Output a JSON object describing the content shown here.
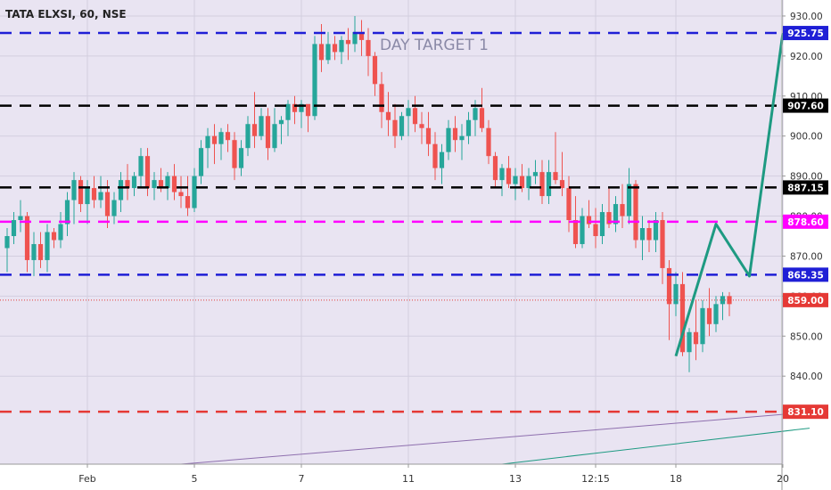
{
  "header": {
    "symbol_label": "TATA ELXSI, 60, NSE"
  },
  "colors": {
    "plot_bg": "#e9e4f2",
    "grid": "#d3cedf",
    "up": "#26a69a",
    "down": "#ef5350",
    "blue_line": "#1f1fd6",
    "black_line": "#000000",
    "magenta_line": "#ff00ff",
    "red_line": "#e53935",
    "projection": "#1e9a82",
    "axis_text": "#333333"
  },
  "chart_data": {
    "type": "candlestick",
    "title": "TATA ELXSI, 60, NSE",
    "annotation": "DAY TARGET 1",
    "y_axis": {
      "range": [
        818,
        934
      ],
      "ticks": [
        "840.00",
        "850.00",
        "860.00",
        "870.00",
        "880.00",
        "890.00",
        "900.00",
        "910.00",
        "920.00",
        "930.00"
      ],
      "tick_values": [
        840,
        850,
        860,
        870,
        880,
        890,
        900,
        910,
        920,
        930
      ]
    },
    "x_axis": {
      "tick_labels": [
        "Feb",
        "5",
        "7",
        "11",
        "13",
        "12:15",
        "18",
        "20"
      ],
      "tick_index": [
        12,
        28,
        44,
        60,
        76,
        88,
        100,
        116
      ]
    },
    "levels": [
      {
        "value": 925.75,
        "label": "925.75",
        "style": "dashed",
        "color_key": "blue_line"
      },
      {
        "value": 907.6,
        "label": "907.60",
        "style": "dashed",
        "color_key": "black_line"
      },
      {
        "value": 887.15,
        "label": "887.15",
        "style": "dashed",
        "color_key": "black_line"
      },
      {
        "value": 878.6,
        "label": "878.60",
        "style": "dashed",
        "color_key": "magenta_line"
      },
      {
        "value": 865.35,
        "label": "865.35",
        "style": "dashed",
        "color_key": "blue_line"
      },
      {
        "value": 859.0,
        "label": "859.00",
        "style": "dotted",
        "color_key": "red_line"
      },
      {
        "value": 831.1,
        "label": "831.10",
        "style": "dashed",
        "color_key": "red_line"
      }
    ],
    "projection_path": [
      [
        100,
        845
      ],
      [
        106,
        878
      ],
      [
        111,
        865
      ],
      [
        116,
        925.75
      ]
    ],
    "trend_lines": [
      {
        "color_key": "grid_purple",
        "from": [
          26,
          818
        ],
        "to": [
          120,
          831
        ]
      },
      {
        "color_key": "projection",
        "from": [
          74,
          818
        ],
        "to": [
          120,
          827
        ]
      }
    ],
    "candles": [
      [
        872,
        877,
        866,
        875
      ],
      [
        875,
        881,
        873,
        879
      ],
      [
        879,
        884,
        876,
        880
      ],
      [
        880,
        881,
        866,
        869
      ],
      [
        869,
        876,
        865,
        873
      ],
      [
        873,
        876,
        867,
        869
      ],
      [
        869,
        878,
        866,
        876
      ],
      [
        876,
        877,
        872,
        874
      ],
      [
        874,
        881,
        872,
        878
      ],
      [
        878,
        886,
        875,
        884
      ],
      [
        884,
        891,
        878,
        889
      ],
      [
        889,
        890,
        881,
        883
      ],
      [
        883,
        889,
        878,
        887
      ],
      [
        887,
        890,
        882,
        884
      ],
      [
        884,
        890,
        882,
        886
      ],
      [
        886,
        889,
        877,
        880
      ],
      [
        880,
        886,
        878,
        884
      ],
      [
        884,
        891,
        881,
        889
      ],
      [
        889,
        893,
        884,
        887
      ],
      [
        887,
        891,
        885,
        890
      ],
      [
        890,
        897,
        887,
        895
      ],
      [
        895,
        897,
        885,
        887
      ],
      [
        887,
        891,
        884,
        889
      ],
      [
        889,
        892,
        886,
        887
      ],
      [
        887,
        891,
        884,
        890
      ],
      [
        890,
        893,
        884,
        886
      ],
      [
        886,
        890,
        882,
        885
      ],
      [
        885,
        890,
        880,
        882
      ],
      [
        882,
        892,
        881,
        890
      ],
      [
        890,
        899,
        888,
        897
      ],
      [
        897,
        902,
        892,
        900
      ],
      [
        900,
        903,
        893,
        898
      ],
      [
        898,
        902,
        894,
        901
      ],
      [
        901,
        903,
        896,
        899
      ],
      [
        899,
        901,
        889,
        892
      ],
      [
        892,
        899,
        890,
        897
      ],
      [
        897,
        905,
        895,
        903
      ],
      [
        903,
        911,
        897,
        900
      ],
      [
        900,
        907,
        899,
        905
      ],
      [
        905,
        907,
        894,
        897
      ],
      [
        897,
        907,
        896,
        903
      ],
      [
        903,
        905,
        898,
        904
      ],
      [
        904,
        909,
        900,
        908
      ],
      [
        908,
        910,
        903,
        906
      ],
      [
        906,
        909,
        902,
        908
      ],
      [
        908,
        907,
        901,
        905
      ],
      [
        905,
        925,
        904,
        923
      ],
      [
        923,
        928,
        916,
        919
      ],
      [
        919,
        926,
        918,
        923
      ],
      [
        923,
        925,
        919,
        921
      ],
      [
        921,
        925,
        918,
        924
      ],
      [
        924,
        927,
        919,
        923
      ],
      [
        923,
        930,
        921,
        926
      ],
      [
        926,
        929,
        920,
        924
      ],
      [
        924,
        927,
        915,
        920
      ],
      [
        920,
        921,
        910,
        913
      ],
      [
        913,
        916,
        902,
        906
      ],
      [
        906,
        911,
        900,
        904
      ],
      [
        904,
        908,
        897,
        900
      ],
      [
        900,
        906,
        899,
        905
      ],
      [
        905,
        909,
        900,
        907
      ],
      [
        907,
        910,
        901,
        903
      ],
      [
        903,
        906,
        898,
        902
      ],
      [
        902,
        906,
        895,
        898
      ],
      [
        898,
        901,
        889,
        892
      ],
      [
        892,
        898,
        888,
        896
      ],
      [
        896,
        904,
        894,
        902
      ],
      [
        902,
        905,
        896,
        899
      ],
      [
        899,
        903,
        894,
        900
      ],
      [
        900,
        906,
        898,
        904
      ],
      [
        904,
        909,
        900,
        907
      ],
      [
        907,
        912,
        901,
        902
      ],
      [
        902,
        904,
        893,
        895
      ],
      [
        895,
        896,
        887,
        889
      ],
      [
        889,
        893,
        885,
        892
      ],
      [
        892,
        895,
        887,
        888
      ],
      [
        888,
        892,
        884,
        890
      ],
      [
        890,
        893,
        886,
        887
      ],
      [
        887,
        892,
        884,
        890
      ],
      [
        890,
        894,
        888,
        891
      ],
      [
        891,
        894,
        883,
        885
      ],
      [
        885,
        894,
        883,
        891
      ],
      [
        891,
        901,
        888,
        889
      ],
      [
        889,
        896,
        885,
        887
      ],
      [
        887,
        890,
        876,
        879
      ],
      [
        879,
        885,
        872,
        873
      ],
      [
        873,
        882,
        872,
        880
      ],
      [
        880,
        884,
        877,
        878
      ],
      [
        878,
        882,
        872,
        875
      ],
      [
        875,
        883,
        873,
        881
      ],
      [
        881,
        887,
        877,
        878
      ],
      [
        878,
        885,
        876,
        883
      ],
      [
        883,
        888,
        877,
        880
      ],
      [
        880,
        892,
        878,
        888
      ],
      [
        888,
        889,
        872,
        874
      ],
      [
        874,
        880,
        869,
        877
      ],
      [
        877,
        879,
        871,
        874
      ],
      [
        874,
        881,
        871,
        879
      ],
      [
        879,
        881,
        863,
        867
      ],
      [
        867,
        869,
        849,
        858
      ],
      [
        858,
        866,
        855,
        863
      ],
      [
        863,
        866,
        845,
        846
      ],
      [
        846,
        852,
        841,
        851
      ],
      [
        851,
        859,
        844,
        848
      ],
      [
        848,
        859,
        846,
        857
      ],
      [
        857,
        862,
        850,
        853
      ],
      [
        853,
        860,
        851,
        858
      ],
      [
        858,
        861,
        854,
        860
      ],
      [
        860,
        861,
        855,
        858
      ]
    ]
  }
}
